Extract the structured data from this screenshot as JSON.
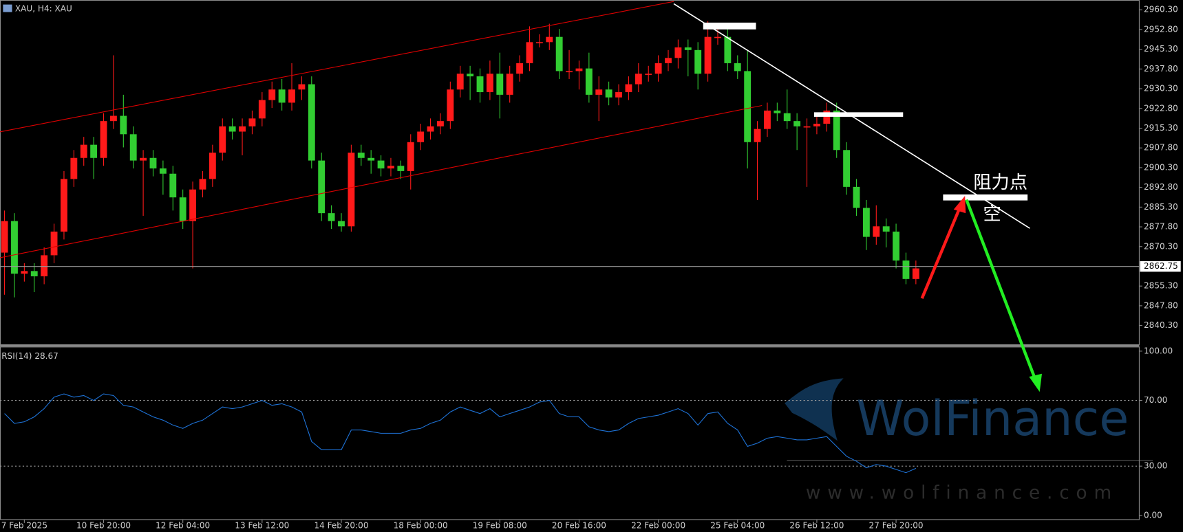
{
  "header": "XAU, H4:  XAU",
  "watermark": {
    "brand": "WolFinance",
    "url": "www.wolfinance.com"
  },
  "chart_data": [
    {
      "type": "candlestick",
      "up_color": "#ff1a1a",
      "down_color": "#32cd32",
      "last_price": 2862.75,
      "annotations": [
        "阻力点",
        "空"
      ],
      "categories": [
        null,
        null,
        "7 Feb 2025",
        null,
        null,
        null,
        null,
        null,
        null,
        null,
        "10 Feb 20:00",
        null,
        null,
        null,
        null,
        null,
        null,
        null,
        "12 Feb 04:00",
        null,
        null,
        null,
        null,
        null,
        null,
        null,
        "13 Feb 12:00",
        null,
        null,
        null,
        null,
        null,
        null,
        null,
        "14 Feb 20:00",
        null,
        null,
        null,
        null,
        null,
        null,
        null,
        "18 Feb 00:00",
        null,
        null,
        null,
        null,
        null,
        null,
        null,
        "19 Feb 08:00",
        null,
        null,
        null,
        null,
        null,
        null,
        null,
        "20 Feb 16:00",
        null,
        null,
        null,
        null,
        null,
        null,
        null,
        "22 Feb 00:00",
        null,
        null,
        null,
        null,
        null,
        null,
        null,
        "25 Feb 04:00",
        null,
        null,
        null,
        null,
        null,
        null,
        null,
        "26 Feb 12:00",
        null,
        null,
        null,
        null,
        null,
        null,
        null,
        "27 Feb 20:00",
        null,
        null
      ],
      "open": [
        2868,
        2880,
        2860,
        2861,
        2859,
        2867,
        2876,
        2896,
        2904,
        2909,
        2904,
        2918,
        2920,
        2913,
        2903,
        2904,
        2900,
        2898,
        2889,
        2880,
        2892,
        2896,
        2906,
        2916,
        2914,
        2916,
        2919,
        2926,
        2930,
        2925,
        2930,
        2932,
        2903,
        2883,
        2880,
        2878,
        2906,
        2904,
        2903,
        2900,
        2901,
        2899,
        2910,
        2914,
        2916,
        2918,
        2930,
        2936,
        2935,
        2929,
        2936,
        2928,
        2936,
        2940,
        2948,
        2948,
        2950,
        2937,
        2937,
        2938,
        2928,
        2930,
        2927,
        2929,
        2932,
        2936,
        2936,
        2940,
        2942,
        2946,
        2945,
        2936,
        2950,
        2950,
        2940,
        2937,
        2910,
        2915,
        2922,
        2921,
        2918,
        2916,
        2916,
        2917,
        2922,
        2907,
        2893,
        2885,
        2874,
        2878,
        2876,
        2865,
        2858
      ],
      "high": [
        2884,
        2883,
        2864,
        2864,
        2870,
        2879,
        2899,
        2907,
        2912,
        2912,
        2921,
        2943,
        2928,
        2916,
        2907,
        2907,
        2903,
        2901,
        2892,
        2895,
        2899,
        2909,
        2919,
        2919,
        2919,
        2922,
        2929,
        2933,
        2934,
        2940,
        2935,
        2935,
        2906,
        2886,
        2883,
        2909,
        2909,
        2907,
        2905,
        2904,
        2903,
        2913,
        2917,
        2919,
        2921,
        2933,
        2939,
        2939,
        2938,
        2941,
        2944,
        2939,
        2943,
        2954,
        2951,
        2955,
        2953,
        2945,
        2941,
        2944,
        2935,
        2933,
        2932,
        2935,
        2940,
        2939,
        2943,
        2945,
        2949,
        2949,
        2948,
        2956,
        2953,
        2953,
        2943,
        2945,
        2918,
        2925,
        2925,
        2930,
        2921,
        2919,
        2920,
        2925,
        2925,
        2910,
        2896,
        2888,
        2886,
        2881,
        2879,
        2868,
        2865
      ],
      "low": [
        2852,
        2851,
        2857,
        2853,
        2856,
        2864,
        2873,
        2893,
        2901,
        2896,
        2901,
        2915,
        2908,
        2900,
        2882,
        2897,
        2890,
        2884,
        2877,
        2862,
        2889,
        2893,
        2903,
        2911,
        2905,
        2913,
        2916,
        2923,
        2922,
        2922,
        2926,
        2900,
        2880,
        2877,
        2876,
        2876,
        2901,
        2898,
        2897,
        2897,
        2896,
        2892,
        2907,
        2911,
        2913,
        2915,
        2927,
        2926,
        2925,
        2926,
        2919,
        2925,
        2933,
        2937,
        2946,
        2945,
        2934,
        2934,
        2930,
        2925,
        2918,
        2924,
        2924,
        2926,
        2929,
        2933,
        2933,
        2937,
        2938,
        2935,
        2930,
        2933,
        2947,
        2937,
        2934,
        2900,
        2888,
        2912,
        2918,
        2915,
        2907,
        2893,
        2913,
        2914,
        2904,
        2890,
        2882,
        2869,
        2871,
        2870,
        2862,
        2856,
        2856
      ],
      "close": [
        2880,
        2860,
        2861,
        2859,
        2867,
        2876,
        2896,
        2904,
        2909,
        2904,
        2918,
        2920,
        2913,
        2903,
        2904,
        2900,
        2898,
        2889,
        2880,
        2892,
        2896,
        2906,
        2916,
        2914,
        2916,
        2919,
        2926,
        2930,
        2925,
        2930,
        2932,
        2903,
        2883,
        2880,
        2878,
        2906,
        2904,
        2903,
        2900,
        2901,
        2899,
        2910,
        2914,
        2916,
        2918,
        2930,
        2936,
        2935,
        2929,
        2936,
        2928,
        2936,
        2940,
        2948,
        2948,
        2950,
        2937,
        2937,
        2938,
        2928,
        2930,
        2927,
        2929,
        2932,
        2936,
        2936,
        2940,
        2942,
        2946,
        2945,
        2936,
        2950,
        2950,
        2940,
        2937,
        2910,
        2915,
        2922,
        2921,
        2918,
        2916,
        2916,
        2917,
        2922,
        2907,
        2893,
        2885,
        2874,
        2878,
        2876,
        2865,
        2858,
        2862
      ],
      "ylim": [
        2832.85,
        2964.02
      ],
      "yticks": [
        {
          "value": 2960.3,
          "label": "2960.30"
        },
        {
          "value": 2952.8,
          "label": "2952.80"
        },
        {
          "value": 2945.3,
          "label": "2945.30"
        },
        {
          "value": 2937.8,
          "label": "2937.80"
        },
        {
          "value": 2930.3,
          "label": "2930.30"
        },
        {
          "value": 2922.8,
          "label": "2922.80"
        },
        {
          "value": 2915.3,
          "label": "2915.30"
        },
        {
          "value": 2907.8,
          "label": "2907.80"
        },
        {
          "value": 2900.3,
          "label": "2900.30"
        },
        {
          "value": 2892.8,
          "label": "2892.80"
        },
        {
          "value": 2885.3,
          "label": "2885.30"
        },
        {
          "value": 2877.8,
          "label": "2877.80"
        },
        {
          "value": 2870.3,
          "label": "2870.30"
        },
        {
          "value": 2855.3,
          "label": "2855.30"
        },
        {
          "value": 2847.8,
          "label": "2847.80"
        },
        {
          "value": 2840.3,
          "label": "2840.30"
        }
      ]
    },
    {
      "type": "line",
      "title": "RSI(14) 28.67",
      "color": "#1e73d8",
      "values": [
        62,
        56,
        57,
        60,
        65,
        72,
        74,
        72,
        73,
        70,
        74,
        73,
        67,
        66,
        63,
        60,
        58,
        55,
        53,
        56,
        58,
        62,
        66,
        65,
        66,
        68,
        70,
        67,
        68,
        66,
        63,
        45,
        40,
        40,
        40,
        52,
        52,
        51,
        50,
        50,
        50,
        52,
        53,
        56,
        58,
        63,
        66,
        64,
        62,
        65,
        60,
        62,
        64,
        66,
        69,
        70,
        62,
        60,
        60,
        54,
        52,
        51,
        52,
        56,
        59,
        60,
        61,
        63,
        65,
        62,
        55,
        62,
        63,
        56,
        52,
        42,
        44,
        47,
        48,
        47,
        46,
        46,
        47,
        48,
        42,
        36,
        33,
        29,
        31,
        30,
        28,
        26,
        28.67
      ],
      "ylim": [
        -2.75,
        102.75
      ],
      "levels": [
        70,
        30
      ],
      "yticks": [
        {
          "value": 100,
          "label": "100.00"
        },
        {
          "value": 70,
          "label": "70.00"
        },
        {
          "value": 30,
          "label": "30.00"
        },
        {
          "value": 0,
          "label": "0.00"
        }
      ]
    }
  ]
}
